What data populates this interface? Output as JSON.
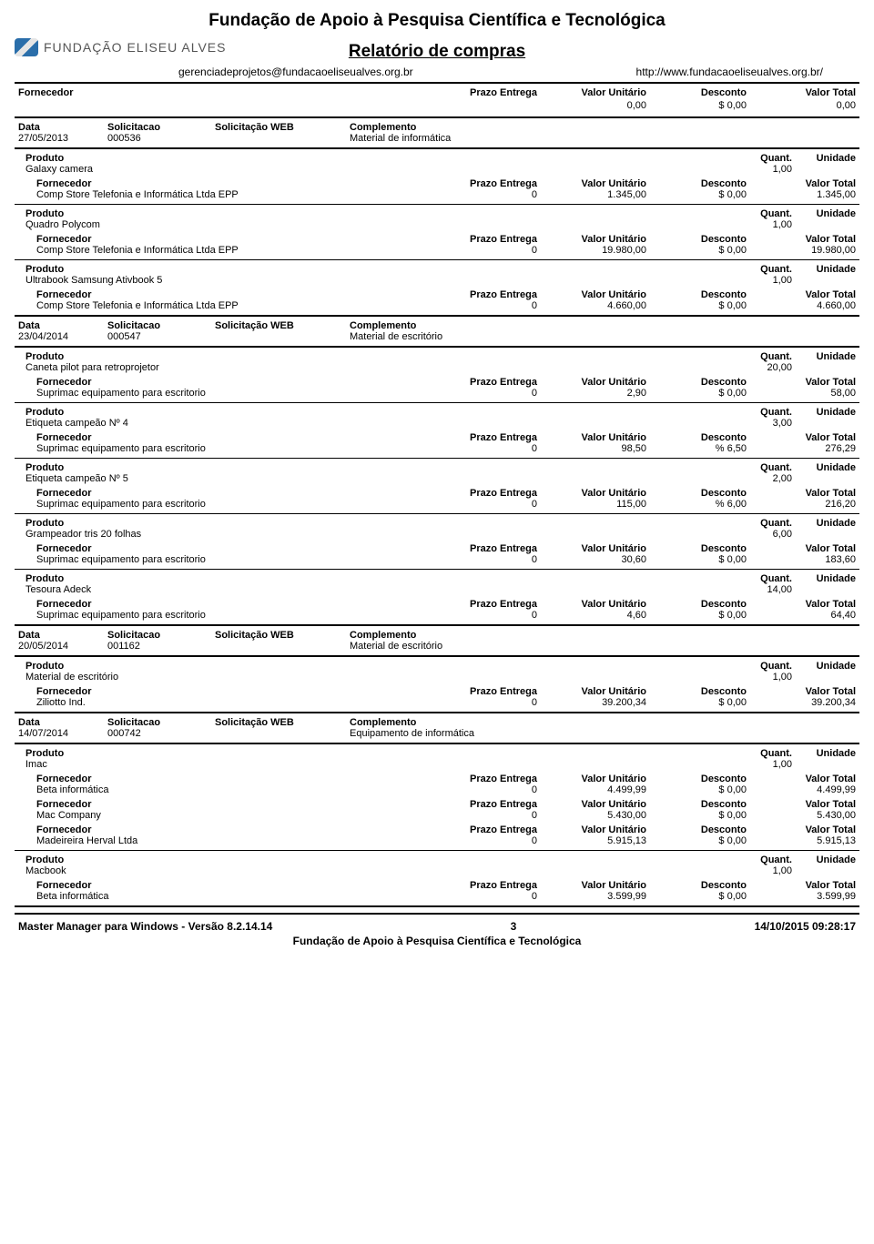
{
  "header": {
    "org_title": "Fundação de Apoio à Pesquisa Científica e Tecnológica",
    "logo_text": "FUNDAÇÃO ELISEU ALVES",
    "report_title": "Relatório de compras",
    "email": "gerenciadeprojetos@fundacaoeliseualves.org.br",
    "url": "http://www.fundacaoeliseualves.org.br/"
  },
  "labels": {
    "fornecedor": "Fornecedor",
    "prazo": "Prazo Entrega",
    "valor_unitario": "Valor Unitário",
    "desconto": "Desconto",
    "valor_total": "Valor Total",
    "data": "Data",
    "solicitacao": "Solicitacao",
    "solicitacao_web": "Solicitação WEB",
    "complemento": "Complemento",
    "produto": "Produto",
    "quant": "Quant.",
    "unidade": "Unidade"
  },
  "top": {
    "vu": "0,00",
    "desc": "$ 0,00",
    "vt": "0,00"
  },
  "blocks": [
    {
      "data": "27/05/2013",
      "solicitacao": "000536",
      "web": "",
      "complemento": "Material de informática",
      "products": [
        {
          "name": "Galaxy camera",
          "quant": "1,00",
          "unit": "",
          "suppliers": [
            {
              "name": "Comp Store Telefonia e Informática Ltda EPP",
              "prazo": "0",
              "vu": "1.345,00",
              "desc": "$ 0,00",
              "vt": "1.345,00"
            }
          ]
        },
        {
          "name": "Quadro Polycom",
          "quant": "1,00",
          "unit": "",
          "suppliers": [
            {
              "name": "Comp Store Telefonia e Informática Ltda EPP",
              "prazo": "0",
              "vu": "19.980,00",
              "desc": "$ 0,00",
              "vt": "19.980,00"
            }
          ]
        },
        {
          "name": "Ultrabook Samsung Ativbook 5",
          "quant": "1,00",
          "unit": "",
          "suppliers": [
            {
              "name": "Comp Store Telefonia e Informática Ltda EPP",
              "prazo": "0",
              "vu": "4.660,00",
              "desc": "$ 0,00",
              "vt": "4.660,00"
            }
          ]
        }
      ]
    },
    {
      "data": "23/04/2014",
      "solicitacao": "000547",
      "web": "",
      "complemento": "Material de escritório",
      "products": [
        {
          "name": "Caneta pilot para retroprojetor",
          "quant": "20,00",
          "unit": "",
          "suppliers": [
            {
              "name": "Suprimac equipamento para escritorio",
              "prazo": "0",
              "vu": "2,90",
              "desc": "$ 0,00",
              "vt": "58,00"
            }
          ]
        },
        {
          "name": "Etiqueta campeão Nº 4",
          "quant": "3,00",
          "unit": "",
          "suppliers": [
            {
              "name": "Suprimac equipamento para escritorio",
              "prazo": "0",
              "vu": "98,50",
              "desc": "% 6,50",
              "vt": "276,29"
            }
          ]
        },
        {
          "name": "Etiqueta campeão Nº 5",
          "quant": "2,00",
          "unit": "",
          "suppliers": [
            {
              "name": "Suprimac equipamento para escritorio",
              "prazo": "0",
              "vu": "115,00",
              "desc": "% 6,00",
              "vt": "216,20"
            }
          ]
        },
        {
          "name": "Grampeador tris 20 folhas",
          "quant": "6,00",
          "unit": "",
          "suppliers": [
            {
              "name": "Suprimac equipamento para escritorio",
              "prazo": "0",
              "vu": "30,60",
              "desc": "$ 0,00",
              "vt": "183,60"
            }
          ]
        },
        {
          "name": "Tesoura Adeck",
          "quant": "14,00",
          "unit": "",
          "suppliers": [
            {
              "name": "Suprimac equipamento para escritorio",
              "prazo": "0",
              "vu": "4,60",
              "desc": "$ 0,00",
              "vt": "64,40"
            }
          ]
        }
      ]
    },
    {
      "data": "20/05/2014",
      "solicitacao": "001162",
      "web": "",
      "complemento": "Material de escritório",
      "products": [
        {
          "name": "Material de escritório",
          "quant": "1,00",
          "unit": "",
          "suppliers": [
            {
              "name": "Ziliotto Ind.",
              "prazo": "0",
              "vu": "39.200,34",
              "desc": "$ 0,00",
              "vt": "39.200,34"
            }
          ]
        }
      ]
    },
    {
      "data": "14/07/2014",
      "solicitacao": "000742",
      "web": "",
      "complemento": "Equipamento de informática",
      "products": [
        {
          "name": "Imac",
          "quant": "1,00",
          "unit": "",
          "suppliers": [
            {
              "name": "Beta informática",
              "prazo": "0",
              "vu": "4.499,99",
              "desc": "$ 0,00",
              "vt": "4.499,99"
            },
            {
              "name": "Mac Company",
              "prazo": "0",
              "vu": "5.430,00",
              "desc": "$ 0,00",
              "vt": "5.430,00"
            },
            {
              "name": "Madeireira Herval Ltda",
              "prazo": "0",
              "vu": "5.915,13",
              "desc": "$ 0,00",
              "vt": "5.915,13"
            }
          ]
        },
        {
          "name": "Macbook",
          "quant": "1,00",
          "unit": "",
          "suppliers": [
            {
              "name": "Beta informática",
              "prazo": "0",
              "vu": "3.599,99",
              "desc": "$ 0,00",
              "vt": "3.599,99"
            }
          ]
        }
      ]
    }
  ],
  "footer": {
    "software": "Master Manager para Windows - Versão 8.2.14.14",
    "page": "3",
    "timestamp": "14/10/2015 09:28:17",
    "org": "Fundação de Apoio à Pesquisa Científica e Tecnológica"
  }
}
